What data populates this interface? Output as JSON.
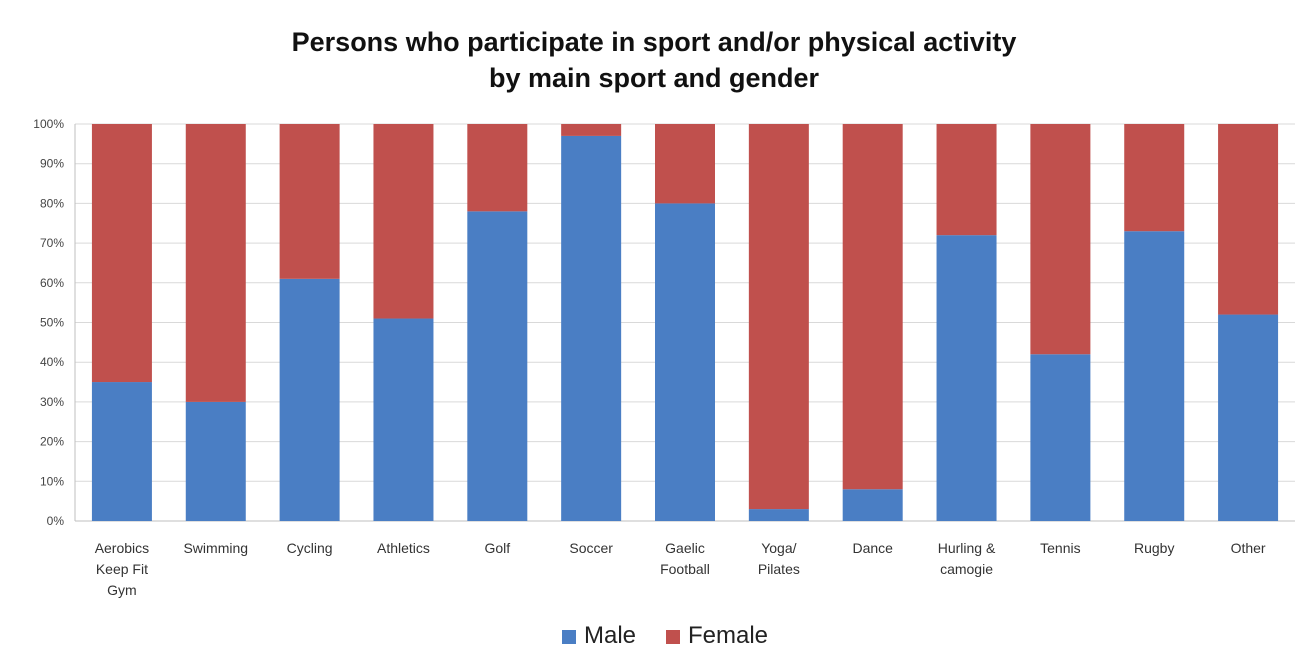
{
  "chart_data": {
    "type": "bar",
    "stacked": true,
    "title": [
      "Persons who participate in sport and/or physical activity",
      "by main sport and gender"
    ],
    "categories": [
      [
        "Aerobics",
        "Keep Fit",
        "Gym"
      ],
      [
        "Swimming"
      ],
      [
        "Cycling"
      ],
      [
        "Athletics"
      ],
      [
        "Golf"
      ],
      [
        "Soccer"
      ],
      [
        "Gaelic",
        "Football"
      ],
      [
        "Yoga/",
        "Pilates"
      ],
      [
        "Dance"
      ],
      [
        "Hurling &",
        "camogie"
      ],
      [
        "Tennis"
      ],
      [
        "Rugby"
      ],
      [
        "Other"
      ]
    ],
    "series": [
      {
        "name": "Male",
        "color": "#4a7ec4",
        "values": [
          35,
          30,
          61,
          51,
          78,
          97,
          80,
          3,
          8,
          72,
          42,
          73,
          52
        ]
      },
      {
        "name": "Female",
        "color": "#c0504d",
        "values": [
          65,
          70,
          39,
          49,
          22,
          3,
          20,
          97,
          92,
          28,
          58,
          27,
          48
        ]
      }
    ],
    "y_ticks": [
      "0%",
      "10%",
      "20%",
      "30%",
      "40%",
      "50%",
      "60%",
      "70%",
      "80%",
      "90%",
      "100%"
    ],
    "ylim": [
      0,
      100
    ],
    "grid": true,
    "legend_position": "bottom"
  }
}
